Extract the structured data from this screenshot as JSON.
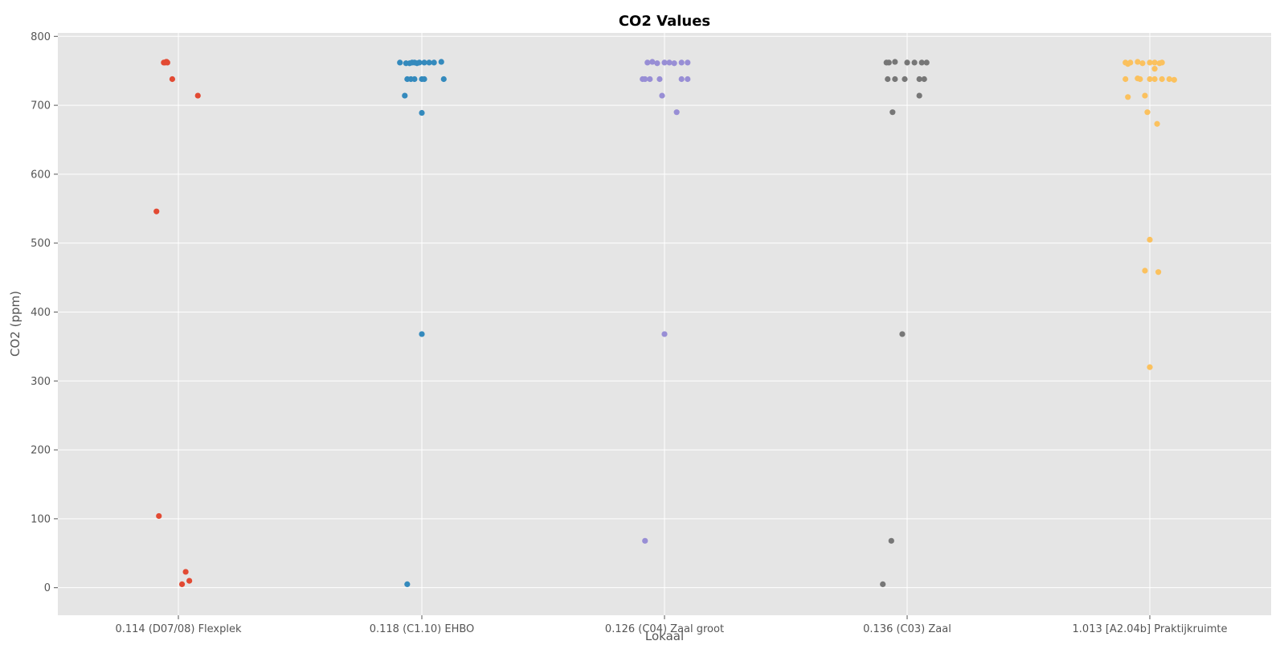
{
  "chart_data": {
    "type": "scatter",
    "title": "CO2 Values",
    "xlabel": "Lokaal",
    "ylabel": "CO2 (ppm)",
    "ylim": [
      -40,
      805
    ],
    "yticks": [
      0,
      100,
      200,
      300,
      400,
      500,
      600,
      700,
      800
    ],
    "grid": true,
    "categories": [
      "0.114 (D07/08) Flexplek",
      "0.118 (C1.10) EHBO",
      "0.126 (C04) Zaal groot",
      "0.136 (C03) Zaal",
      "1.013 [A2.04b] Praktijkruimte"
    ],
    "colors": [
      "#e24a33",
      "#348abd",
      "#988ed5",
      "#777777",
      "#fbc15e"
    ],
    "series": [
      {
        "category": "0.114 (D07/08) Flexplek",
        "points": [
          {
            "jitter": -0.06,
            "y": 762
          },
          {
            "jitter": -0.055,
            "y": 762
          },
          {
            "jitter": -0.05,
            "y": 763
          },
          {
            "jitter": -0.048,
            "y": 763
          },
          {
            "jitter": -0.045,
            "y": 762
          },
          {
            "jitter": -0.025,
            "y": 738
          },
          {
            "jitter": 0.08,
            "y": 714
          },
          {
            "jitter": -0.09,
            "y": 546
          },
          {
            "jitter": -0.08,
            "y": 104
          },
          {
            "jitter": 0.03,
            "y": 23
          },
          {
            "jitter": 0.045,
            "y": 10
          },
          {
            "jitter": 0.015,
            "y": 5
          }
        ]
      },
      {
        "category": "0.118 (C1.10) EHBO",
        "points": [
          {
            "jitter": -0.09,
            "y": 762
          },
          {
            "jitter": -0.065,
            "y": 761
          },
          {
            "jitter": -0.05,
            "y": 761
          },
          {
            "jitter": -0.04,
            "y": 762
          },
          {
            "jitter": -0.03,
            "y": 762
          },
          {
            "jitter": -0.02,
            "y": 761
          },
          {
            "jitter": -0.01,
            "y": 762
          },
          {
            "jitter": 0.01,
            "y": 762
          },
          {
            "jitter": 0.03,
            "y": 762
          },
          {
            "jitter": 0.05,
            "y": 762
          },
          {
            "jitter": 0.08,
            "y": 763
          },
          {
            "jitter": -0.06,
            "y": 738
          },
          {
            "jitter": -0.045,
            "y": 738
          },
          {
            "jitter": -0.03,
            "y": 738
          },
          {
            "jitter": 0.0,
            "y": 738
          },
          {
            "jitter": 0.01,
            "y": 738
          },
          {
            "jitter": 0.09,
            "y": 738
          },
          {
            "jitter": -0.07,
            "y": 714
          },
          {
            "jitter": 0.0,
            "y": 689
          },
          {
            "jitter": 0.0,
            "y": 368
          },
          {
            "jitter": -0.06,
            "y": 5
          }
        ]
      },
      {
        "category": "0.126 (C04) Zaal groot",
        "points": [
          {
            "jitter": -0.07,
            "y": 762
          },
          {
            "jitter": -0.05,
            "y": 763
          },
          {
            "jitter": -0.03,
            "y": 761
          },
          {
            "jitter": 0.0,
            "y": 762
          },
          {
            "jitter": 0.02,
            "y": 762
          },
          {
            "jitter": 0.04,
            "y": 761
          },
          {
            "jitter": 0.07,
            "y": 762
          },
          {
            "jitter": 0.095,
            "y": 762
          },
          {
            "jitter": -0.09,
            "y": 738
          },
          {
            "jitter": -0.08,
            "y": 738
          },
          {
            "jitter": -0.06,
            "y": 738
          },
          {
            "jitter": -0.02,
            "y": 738
          },
          {
            "jitter": 0.07,
            "y": 738
          },
          {
            "jitter": 0.095,
            "y": 738
          },
          {
            "jitter": -0.01,
            "y": 714
          },
          {
            "jitter": 0.05,
            "y": 690
          },
          {
            "jitter": 0.0,
            "y": 368
          },
          {
            "jitter": -0.08,
            "y": 68
          }
        ]
      },
      {
        "category": "0.136 (C03) Zaal",
        "points": [
          {
            "jitter": -0.085,
            "y": 762
          },
          {
            "jitter": -0.075,
            "y": 762
          },
          {
            "jitter": -0.05,
            "y": 763
          },
          {
            "jitter": 0.0,
            "y": 762
          },
          {
            "jitter": 0.03,
            "y": 762
          },
          {
            "jitter": 0.06,
            "y": 762
          },
          {
            "jitter": 0.08,
            "y": 762
          },
          {
            "jitter": -0.08,
            "y": 738
          },
          {
            "jitter": -0.05,
            "y": 738
          },
          {
            "jitter": -0.01,
            "y": 738
          },
          {
            "jitter": 0.05,
            "y": 738
          },
          {
            "jitter": 0.07,
            "y": 738
          },
          {
            "jitter": 0.05,
            "y": 714
          },
          {
            "jitter": -0.06,
            "y": 690
          },
          {
            "jitter": -0.02,
            "y": 368
          },
          {
            "jitter": -0.065,
            "y": 68
          },
          {
            "jitter": -0.1,
            "y": 5
          }
        ]
      },
      {
        "category": "1.013 [A2.04b] Praktijkruimte",
        "points": [
          {
            "jitter": -0.1,
            "y": 762
          },
          {
            "jitter": -0.09,
            "y": 760
          },
          {
            "jitter": -0.08,
            "y": 762
          },
          {
            "jitter": -0.05,
            "y": 763
          },
          {
            "jitter": -0.03,
            "y": 761
          },
          {
            "jitter": 0.0,
            "y": 762
          },
          {
            "jitter": 0.02,
            "y": 762
          },
          {
            "jitter": 0.04,
            "y": 761
          },
          {
            "jitter": 0.05,
            "y": 762
          },
          {
            "jitter": 0.02,
            "y": 753
          },
          {
            "jitter": -0.1,
            "y": 738
          },
          {
            "jitter": -0.05,
            "y": 739
          },
          {
            "jitter": -0.04,
            "y": 738
          },
          {
            "jitter": 0.0,
            "y": 738
          },
          {
            "jitter": 0.02,
            "y": 738
          },
          {
            "jitter": 0.05,
            "y": 738
          },
          {
            "jitter": 0.08,
            "y": 738
          },
          {
            "jitter": 0.1,
            "y": 737
          },
          {
            "jitter": -0.09,
            "y": 712
          },
          {
            "jitter": -0.02,
            "y": 714
          },
          {
            "jitter": -0.01,
            "y": 690
          },
          {
            "jitter": 0.03,
            "y": 673
          },
          {
            "jitter": 0.0,
            "y": 505
          },
          {
            "jitter": -0.02,
            "y": 460
          },
          {
            "jitter": 0.035,
            "y": 458
          },
          {
            "jitter": 0.0,
            "y": 320
          }
        ]
      }
    ]
  }
}
